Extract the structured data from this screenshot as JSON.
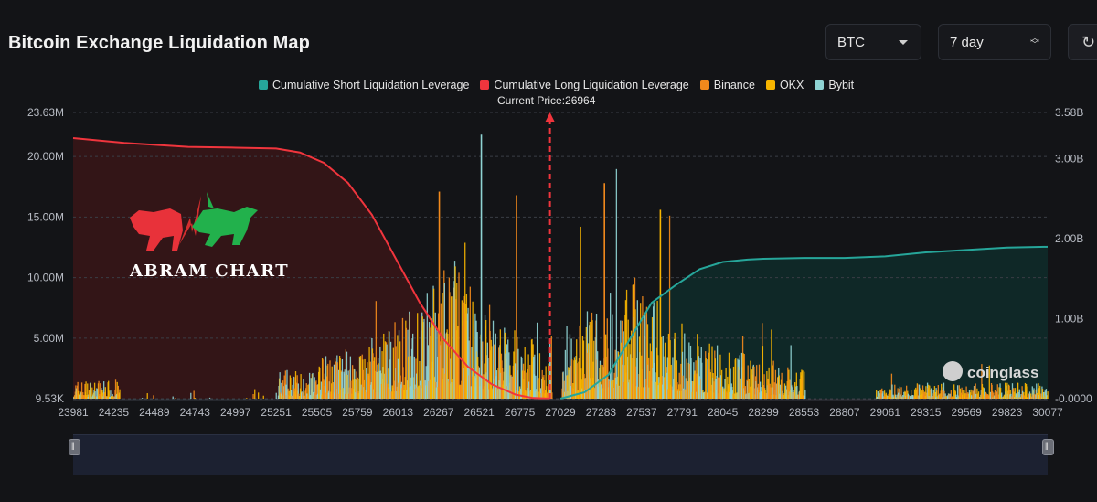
{
  "header": {
    "title": "Bitcoin Exchange Liquidation Map"
  },
  "controls": {
    "coin": "BTC",
    "period": "7 day",
    "refresh_icon": "refresh-icon"
  },
  "legend": [
    {
      "label": "Cumulative Short Liquidation Leverage",
      "color": "#26a69a"
    },
    {
      "label": "Cumulative Long Liquidation Leverage",
      "color": "#f0353d"
    },
    {
      "label": "Binance",
      "color": "#f2891c"
    },
    {
      "label": "OKX",
      "color": "#f7b500"
    },
    {
      "label": "Bybit",
      "color": "#8fd3d3"
    }
  ],
  "current_price_label": "Current Price:26964",
  "watermark": {
    "brand": "ABRAM CHART",
    "source": "coinglass"
  },
  "chart_data": {
    "type": "bar",
    "title": "Bitcoin Exchange Liquidation Map",
    "current_price": 26964,
    "x_range": [
      23981,
      30077
    ],
    "x_ticks": [
      "23981",
      "24235",
      "24489",
      "24743",
      "24997",
      "25251",
      "25505",
      "25759",
      "26013",
      "26267",
      "26521",
      "26775",
      "27029",
      "27283",
      "27537",
      "27791",
      "28045",
      "28299",
      "28553",
      "28807",
      "29061",
      "29315",
      "29569",
      "29823",
      "30077"
    ],
    "y_left": {
      "min": 9530,
      "max": 23630000,
      "ticks": [
        9530,
        5000000,
        10000000,
        15000000,
        20000000,
        23630000
      ],
      "tick_labels": [
        "9.53K",
        "5.00M",
        "10.00M",
        "15.00M",
        "20.00M",
        "23.63M"
      ]
    },
    "y_right": {
      "min": 0,
      "max": 3580000000,
      "ticks": [
        0,
        1000000000,
        2000000000,
        3000000000,
        3580000000
      ],
      "tick_labels": [
        "-0.0000",
        "1.00B",
        "2.00B",
        "3.00B",
        "3.58B"
      ]
    },
    "series": [
      {
        "name": "Cumulative Long Liquidation Leverage",
        "axis": "right",
        "color": "#f0353d",
        "x": [
          23981,
          24300,
          24700,
          25000,
          25251,
          25400,
          25550,
          25700,
          25850,
          26000,
          26150,
          26300,
          26450,
          26600,
          26750,
          26850,
          26964
        ],
        "y": [
          3260000000.0,
          3200000000.0,
          3150000000.0,
          3140000000.0,
          3130000000.0,
          3080000000.0,
          2950000000.0,
          2700000000.0,
          2300000000.0,
          1750000000.0,
          1200000000.0,
          740000000.0,
          400000000.0,
          180000000.0,
          50000000.0,
          10000000.0,
          0.0
        ]
      },
      {
        "name": "Cumulative Short Liquidation Leverage",
        "axis": "right",
        "color": "#26a69a",
        "x": [
          27029,
          27180,
          27330,
          27480,
          27600,
          27750,
          27900,
          28045,
          28200,
          28299,
          28553,
          28807,
          29061,
          29315,
          29569,
          29823,
          30077
        ],
        "y": [
          0.0,
          80000000.0,
          300000000.0,
          800000000.0,
          1200000000.0,
          1420000000.0,
          1620000000.0,
          1710000000.0,
          1740000000.0,
          1750000000.0,
          1760000000.0,
          1760000000.0,
          1780000000.0,
          1830000000.0,
          1860000000.0,
          1890000000.0,
          1900000000.0
        ]
      }
    ],
    "bar_peaks": [
      {
        "x": 26530,
        "value": 21800000,
        "exchange": "Bybit"
      },
      {
        "x": 26267,
        "value": 17100000,
        "exchange": "Binance"
      },
      {
        "x": 27300,
        "value": 17800000,
        "exchange": "Binance"
      },
      {
        "x": 26750,
        "value": 16800000,
        "exchange": "Binance"
      },
      {
        "x": 27650,
        "value": 15600000,
        "exchange": "OKX"
      },
      {
        "x": 27150,
        "value": 14200000,
        "exchange": "OKX"
      }
    ]
  }
}
